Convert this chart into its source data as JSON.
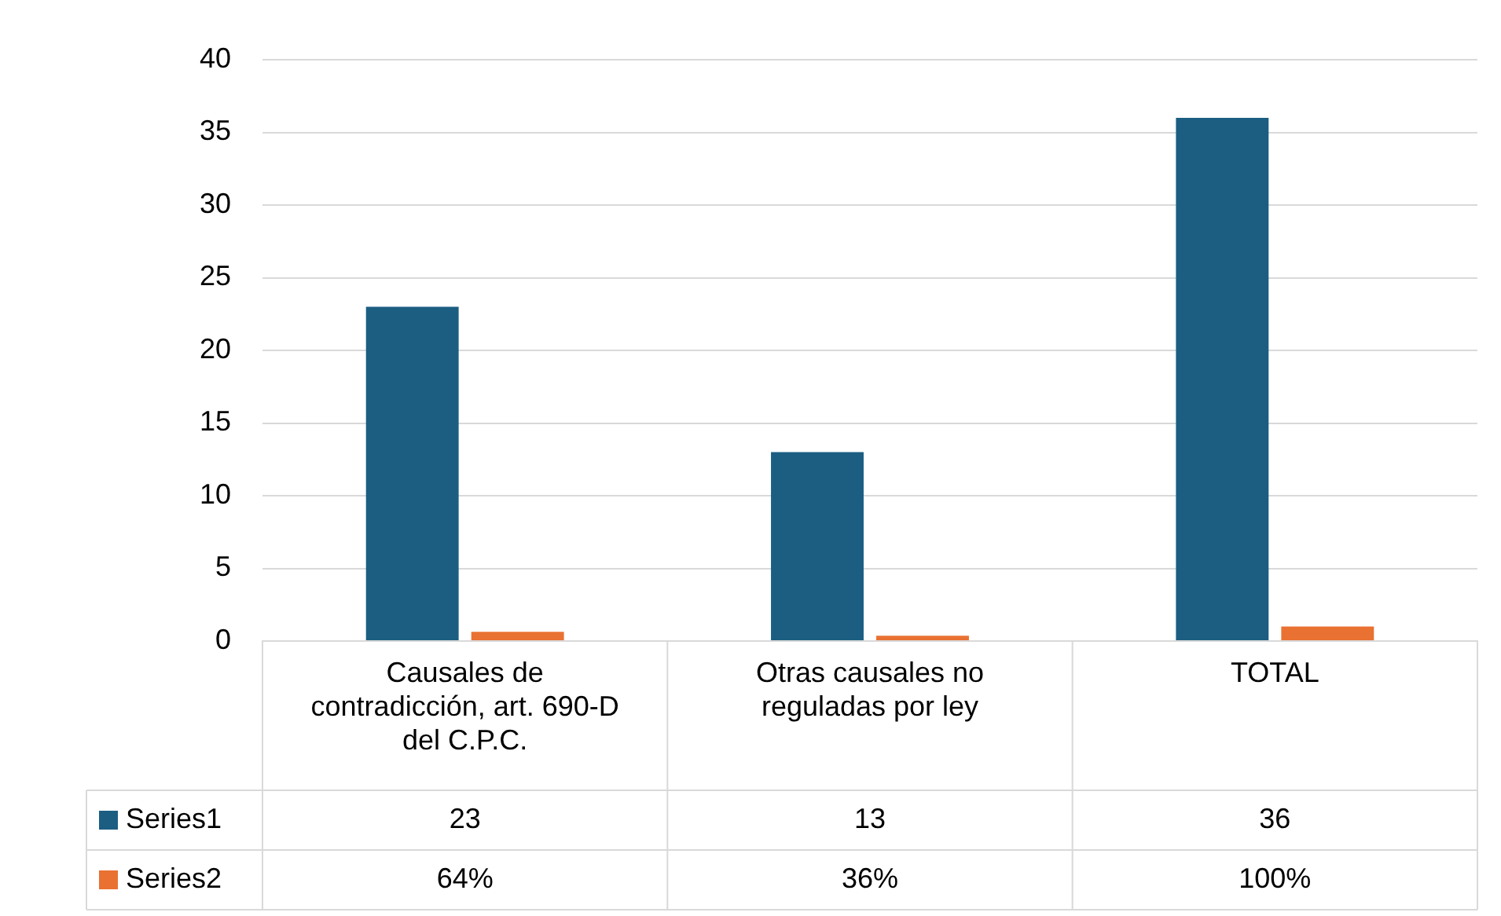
{
  "chart_data": {
    "type": "bar",
    "categories": [
      "Causales de contradicción, art. 690-D del C.P.C.",
      "Otras causales no reguladas por ley",
      "TOTAL"
    ],
    "series": [
      {
        "name": "Series1",
        "color": "#1b5e82",
        "values": [
          23,
          13,
          36
        ],
        "value_labels": [
          "23",
          "13",
          "36"
        ]
      },
      {
        "name": "Series2",
        "color": "#e97132",
        "values": [
          0.64,
          0.36,
          1
        ],
        "value_labels": [
          "64%",
          "36%",
          "100%"
        ]
      }
    ],
    "ylim": [
      0,
      40
    ],
    "yticks": [
      0,
      5,
      10,
      15,
      20,
      25,
      30,
      35,
      40
    ],
    "grid": "y",
    "legend": "bottom"
  }
}
